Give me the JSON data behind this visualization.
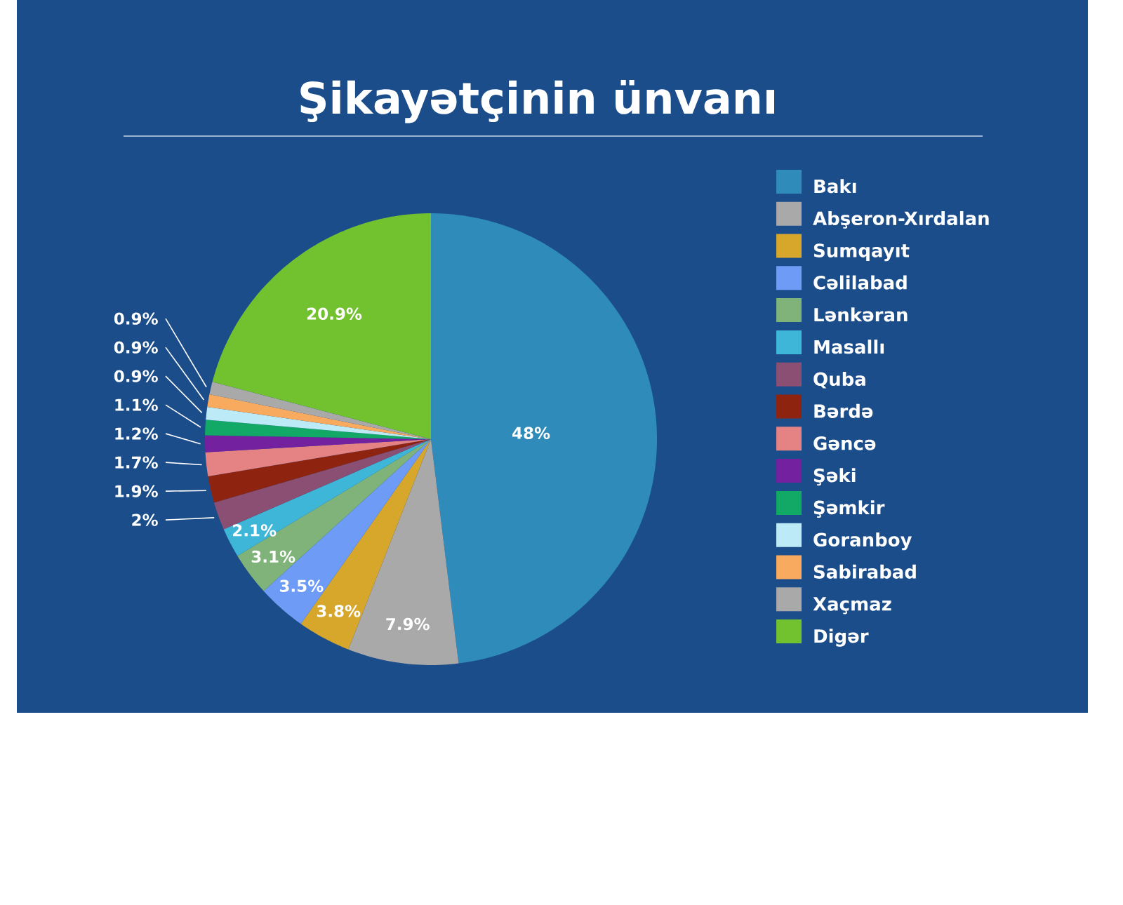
{
  "chart_data": {
    "type": "pie",
    "title": "Şikayətçinin ünvanı",
    "categories": [
      "Bakı",
      "Abşeron-Xırdalan",
      "Sumqayıt",
      "Cəlilabad",
      "Lənkəran",
      "Masallı",
      "Quba",
      "Bərdə",
      "Gəncə",
      "Şəki",
      "Şəmkir",
      "Goranboy",
      "Sabirabad",
      "Xaçmaz",
      "Digər"
    ],
    "values": [
      48,
      7.9,
      3.8,
      3.5,
      3.1,
      2.1,
      2,
      1.9,
      1.7,
      1.2,
      1.1,
      0.9,
      0.9,
      0.9,
      20.9
    ],
    "value_labels": [
      "48%",
      "7.9%",
      "3.8%",
      "3.5%",
      "3.1%",
      "2.1%",
      "2%",
      "1.9%",
      "1.7%",
      "1.2%",
      "1.1%",
      "0.9%",
      "0.9%",
      "0.9%",
      "20.9%"
    ],
    "colors": [
      "#2e8bba",
      "#aaa9a9",
      "#d6a72b",
      "#6e9bf5",
      "#7fb37a",
      "#3eb6d8",
      "#8a4f72",
      "#8e2410",
      "#e58283",
      "#7421a0",
      "#12a865",
      "#bdeaf7",
      "#f8aa5e",
      "#a9a9a9",
      "#72c22f"
    ],
    "legend": "right"
  }
}
